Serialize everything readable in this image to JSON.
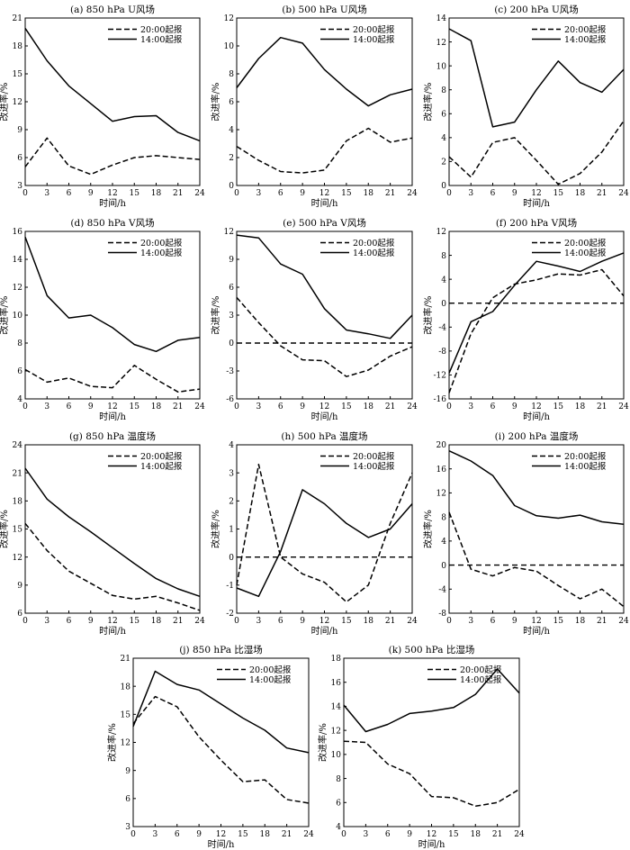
{
  "chart_data": [
    {
      "id": "a",
      "type": "line",
      "title": "(a) 850 hPa U风场",
      "xlabel": "时间/h",
      "ylabel": "改进率/%",
      "x": [
        0,
        3,
        6,
        9,
        12,
        15,
        18,
        21,
        24
      ],
      "xlim": [
        0,
        24
      ],
      "ylim": [
        3,
        21
      ],
      "yticks": [
        3,
        6,
        9,
        12,
        15,
        18,
        21
      ],
      "zero_line": false,
      "legend": "top-right",
      "series": [
        {
          "name": "20:00起报",
          "style": "dashed",
          "values": [
            5.0,
            8.1,
            5.1,
            4.2,
            5.2,
            6.0,
            6.2,
            6.0,
            5.8
          ]
        },
        {
          "name": "14:00起报",
          "style": "solid",
          "values": [
            19.9,
            16.4,
            13.7,
            11.8,
            9.9,
            10.4,
            10.5,
            8.7,
            7.8
          ]
        }
      ]
    },
    {
      "id": "b",
      "type": "line",
      "title": "(b) 500 hPa U风场",
      "xlabel": "时间/h",
      "ylabel": "改进率/%",
      "x": [
        0,
        3,
        6,
        9,
        12,
        15,
        18,
        21,
        24
      ],
      "xlim": [
        0,
        24
      ],
      "ylim": [
        0,
        12
      ],
      "yticks": [
        0,
        2,
        4,
        6,
        8,
        10,
        12
      ],
      "zero_line": false,
      "legend": "top-right",
      "series": [
        {
          "name": "20:00起报",
          "style": "dashed",
          "values": [
            2.8,
            1.8,
            1.0,
            0.9,
            1.1,
            3.2,
            4.1,
            3.1,
            3.4
          ]
        },
        {
          "name": "14:00起报",
          "style": "solid",
          "values": [
            7.0,
            9.1,
            10.6,
            10.2,
            8.3,
            6.9,
            5.7,
            6.5,
            6.9
          ]
        }
      ]
    },
    {
      "id": "c",
      "type": "line",
      "title": "(c) 200 hPa U风场",
      "xlabel": "时间/h",
      "ylabel": "改进率/%",
      "x": [
        0,
        3,
        6,
        9,
        12,
        15,
        18,
        21,
        24
      ],
      "xlim": [
        0,
        24
      ],
      "ylim": [
        0,
        14
      ],
      "yticks": [
        0,
        2,
        4,
        6,
        8,
        10,
        12,
        14
      ],
      "zero_line": false,
      "legend": "top-right",
      "series": [
        {
          "name": "20:00起报",
          "style": "dashed",
          "values": [
            2.4,
            0.7,
            3.6,
            4.0,
            2.1,
            0.1,
            1.0,
            2.8,
            5.4
          ]
        },
        {
          "name": "14:00起报",
          "style": "solid",
          "values": [
            13.1,
            12.1,
            4.9,
            5.3,
            8.0,
            10.4,
            8.6,
            7.8,
            9.7
          ]
        }
      ]
    },
    {
      "id": "d",
      "type": "line",
      "title": "(d) 850 hPa V风场",
      "xlabel": "时间/h",
      "ylabel": "改进率/%",
      "x": [
        0,
        3,
        6,
        9,
        12,
        15,
        18,
        21,
        24
      ],
      "xlim": [
        0,
        24
      ],
      "ylim": [
        4,
        16
      ],
      "yticks": [
        4,
        6,
        8,
        10,
        12,
        14,
        16
      ],
      "zero_line": false,
      "legend": "top-right",
      "series": [
        {
          "name": "20:00起报",
          "style": "dashed",
          "values": [
            6.1,
            5.2,
            5.5,
            4.9,
            4.8,
            6.4,
            5.4,
            4.5,
            4.7
          ]
        },
        {
          "name": "14:00起报",
          "style": "solid",
          "values": [
            15.6,
            11.4,
            9.8,
            10.0,
            9.1,
            7.9,
            7.4,
            8.2,
            8.4
          ]
        }
      ]
    },
    {
      "id": "e",
      "type": "line",
      "title": "(e) 500 hPa V风场",
      "xlabel": "时间/h",
      "ylabel": "改进率/%",
      "x": [
        0,
        3,
        6,
        9,
        12,
        15,
        18,
        21,
        24
      ],
      "xlim": [
        0,
        24
      ],
      "ylim": [
        -6,
        12
      ],
      "yticks": [
        -6,
        -3,
        0,
        3,
        6,
        9,
        12
      ],
      "zero_line": true,
      "legend": "top-right",
      "series": [
        {
          "name": "20:00起报",
          "style": "dashed",
          "values": [
            4.9,
            2.2,
            -0.3,
            -1.8,
            -1.9,
            -3.6,
            -2.9,
            -1.4,
            -0.4
          ]
        },
        {
          "name": "14:00起报",
          "style": "solid",
          "values": [
            11.6,
            11.3,
            8.5,
            7.4,
            3.7,
            1.4,
            1.0,
            0.5,
            3.0
          ]
        }
      ]
    },
    {
      "id": "f",
      "type": "line",
      "title": "(f) 200 hPa V风场",
      "xlabel": "时间/h",
      "ylabel": "改进率/%",
      "x": [
        0,
        3,
        6,
        9,
        12,
        15,
        18,
        21,
        24
      ],
      "xlim": [
        0,
        24
      ],
      "ylim": [
        -16,
        12
      ],
      "yticks": [
        -16,
        -12,
        -8,
        -4,
        0,
        4,
        8,
        12
      ],
      "zero_line": true,
      "legend": "top-right",
      "series": [
        {
          "name": "20:00起报",
          "style": "dashed",
          "values": [
            -15.0,
            -5.1,
            0.9,
            3.2,
            3.9,
            4.9,
            4.7,
            5.6,
            1.2
          ]
        },
        {
          "name": "14:00起报",
          "style": "solid",
          "values": [
            -11.7,
            -3.1,
            -1.4,
            3.0,
            7.0,
            6.2,
            5.3,
            7.0,
            8.4
          ]
        }
      ]
    },
    {
      "id": "g",
      "type": "line",
      "title": "(g) 850 hPa 温度场",
      "xlabel": "时间/h",
      "ylabel": "改进率/%",
      "x": [
        0,
        3,
        6,
        9,
        12,
        15,
        18,
        21,
        24
      ],
      "xlim": [
        0,
        24
      ],
      "ylim": [
        6,
        24
      ],
      "yticks": [
        6,
        9,
        12,
        15,
        18,
        21,
        24
      ],
      "zero_line": false,
      "legend": "top-right",
      "series": [
        {
          "name": "20:00起报",
          "style": "dashed",
          "values": [
            15.6,
            12.7,
            10.5,
            9.2,
            7.9,
            7.5,
            7.8,
            7.1,
            6.3
          ]
        },
        {
          "name": "14:00起报",
          "style": "solid",
          "values": [
            21.5,
            18.2,
            16.3,
            14.7,
            13.0,
            11.3,
            9.7,
            8.6,
            7.8
          ]
        }
      ]
    },
    {
      "id": "h",
      "type": "line",
      "title": "(h) 500 hPa 温度场",
      "xlabel": "时间/h",
      "ylabel": "改进率/%",
      "x": [
        0,
        3,
        6,
        9,
        12,
        15,
        18,
        21,
        24
      ],
      "xlim": [
        0,
        24
      ],
      "ylim": [
        -2,
        4
      ],
      "yticks": [
        -2,
        -1,
        0,
        1,
        2,
        3,
        4
      ],
      "zero_line": true,
      "legend": "top-right",
      "series": [
        {
          "name": "20:00起报",
          "style": "dashed",
          "values": [
            -1.0,
            3.3,
            0.0,
            -0.6,
            -0.9,
            -1.6,
            -1.0,
            1.2,
            3.0
          ]
        },
        {
          "name": "14:00起报",
          "style": "solid",
          "values": [
            -1.1,
            -1.4,
            0.2,
            2.4,
            1.9,
            1.2,
            0.7,
            1.0,
            1.9
          ]
        }
      ]
    },
    {
      "id": "i",
      "type": "line",
      "title": "(i) 200 hPa 温度场",
      "xlabel": "时间/h",
      "ylabel": "改进率/%",
      "x": [
        0,
        3,
        6,
        9,
        12,
        15,
        18,
        21,
        24
      ],
      "xlim": [
        0,
        24
      ],
      "ylim": [
        -8,
        20
      ],
      "yticks": [
        -8,
        -4,
        0,
        4,
        8,
        12,
        16,
        20
      ],
      "zero_line": true,
      "legend": "top-right",
      "series": [
        {
          "name": "20:00起报",
          "style": "dashed",
          "values": [
            8.8,
            -0.7,
            -1.8,
            -0.4,
            -1.0,
            -3.4,
            -5.6,
            -4.0,
            -6.9
          ]
        },
        {
          "name": "14:00起报",
          "style": "solid",
          "values": [
            19.0,
            17.3,
            14.9,
            9.9,
            8.2,
            7.8,
            8.3,
            7.2,
            6.8
          ]
        }
      ]
    },
    {
      "id": "j",
      "type": "line",
      "title": "(j) 850 hPa 比湿场",
      "xlabel": "时间/h",
      "ylabel": "改进率/%",
      "x": [
        0,
        3,
        6,
        9,
        12,
        15,
        18,
        21,
        24
      ],
      "xlim": [
        0,
        24
      ],
      "ylim": [
        3,
        21
      ],
      "yticks": [
        3,
        6,
        9,
        12,
        15,
        18,
        21
      ],
      "zero_line": false,
      "legend": "top-right",
      "series": [
        {
          "name": "20:00起报",
          "style": "dashed",
          "values": [
            14.0,
            16.9,
            15.8,
            12.6,
            10.1,
            7.8,
            8.0,
            5.9,
            5.5
          ]
        },
        {
          "name": "14:00起报",
          "style": "solid",
          "values": [
            13.7,
            19.6,
            18.2,
            17.6,
            16.1,
            14.6,
            13.3,
            11.4,
            10.9
          ]
        }
      ]
    },
    {
      "id": "k",
      "type": "line",
      "title": "(k) 500 hPa 比湿场",
      "xlabel": "时间/h",
      "ylabel": "改进率/%",
      "x": [
        0,
        3,
        6,
        9,
        12,
        15,
        18,
        21,
        24
      ],
      "xlim": [
        0,
        24
      ],
      "ylim": [
        4,
        18
      ],
      "yticks": [
        4,
        6,
        8,
        10,
        12,
        14,
        16,
        18
      ],
      "zero_line": false,
      "legend": "top-right",
      "series": [
        {
          "name": "20:00起报",
          "style": "dashed",
          "values": [
            11.1,
            11.0,
            9.2,
            8.4,
            6.5,
            6.4,
            5.7,
            6.0,
            7.1
          ]
        },
        {
          "name": "14:00起报",
          "style": "solid",
          "values": [
            14.1,
            11.9,
            12.5,
            13.4,
            13.6,
            13.9,
            15.0,
            17.1,
            15.1
          ]
        }
      ]
    }
  ]
}
